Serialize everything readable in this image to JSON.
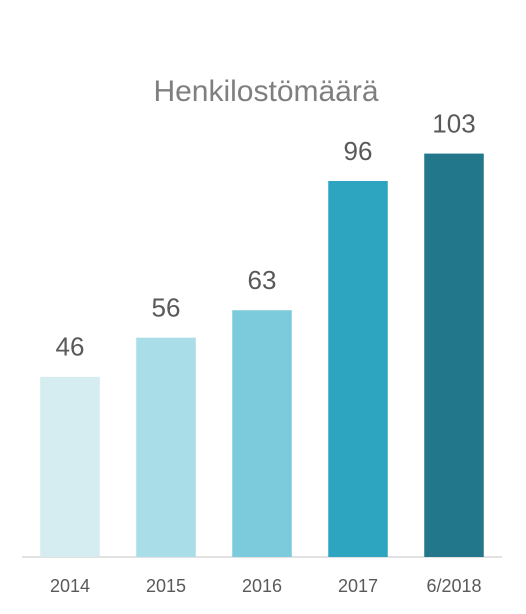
{
  "chart_data": {
    "type": "bar",
    "title": "Henkilostömäärä",
    "categories": [
      "2014",
      "2015",
      "2016",
      "2017",
      "6/2018"
    ],
    "values": [
      46,
      56,
      63,
      96,
      103
    ],
    "colors": [
      "#d5ecf1",
      "#a9dde8",
      "#7ccbdc",
      "#2ea5c0",
      "#22788a"
    ],
    "ylim": [
      0,
      120
    ],
    "grid": false
  }
}
